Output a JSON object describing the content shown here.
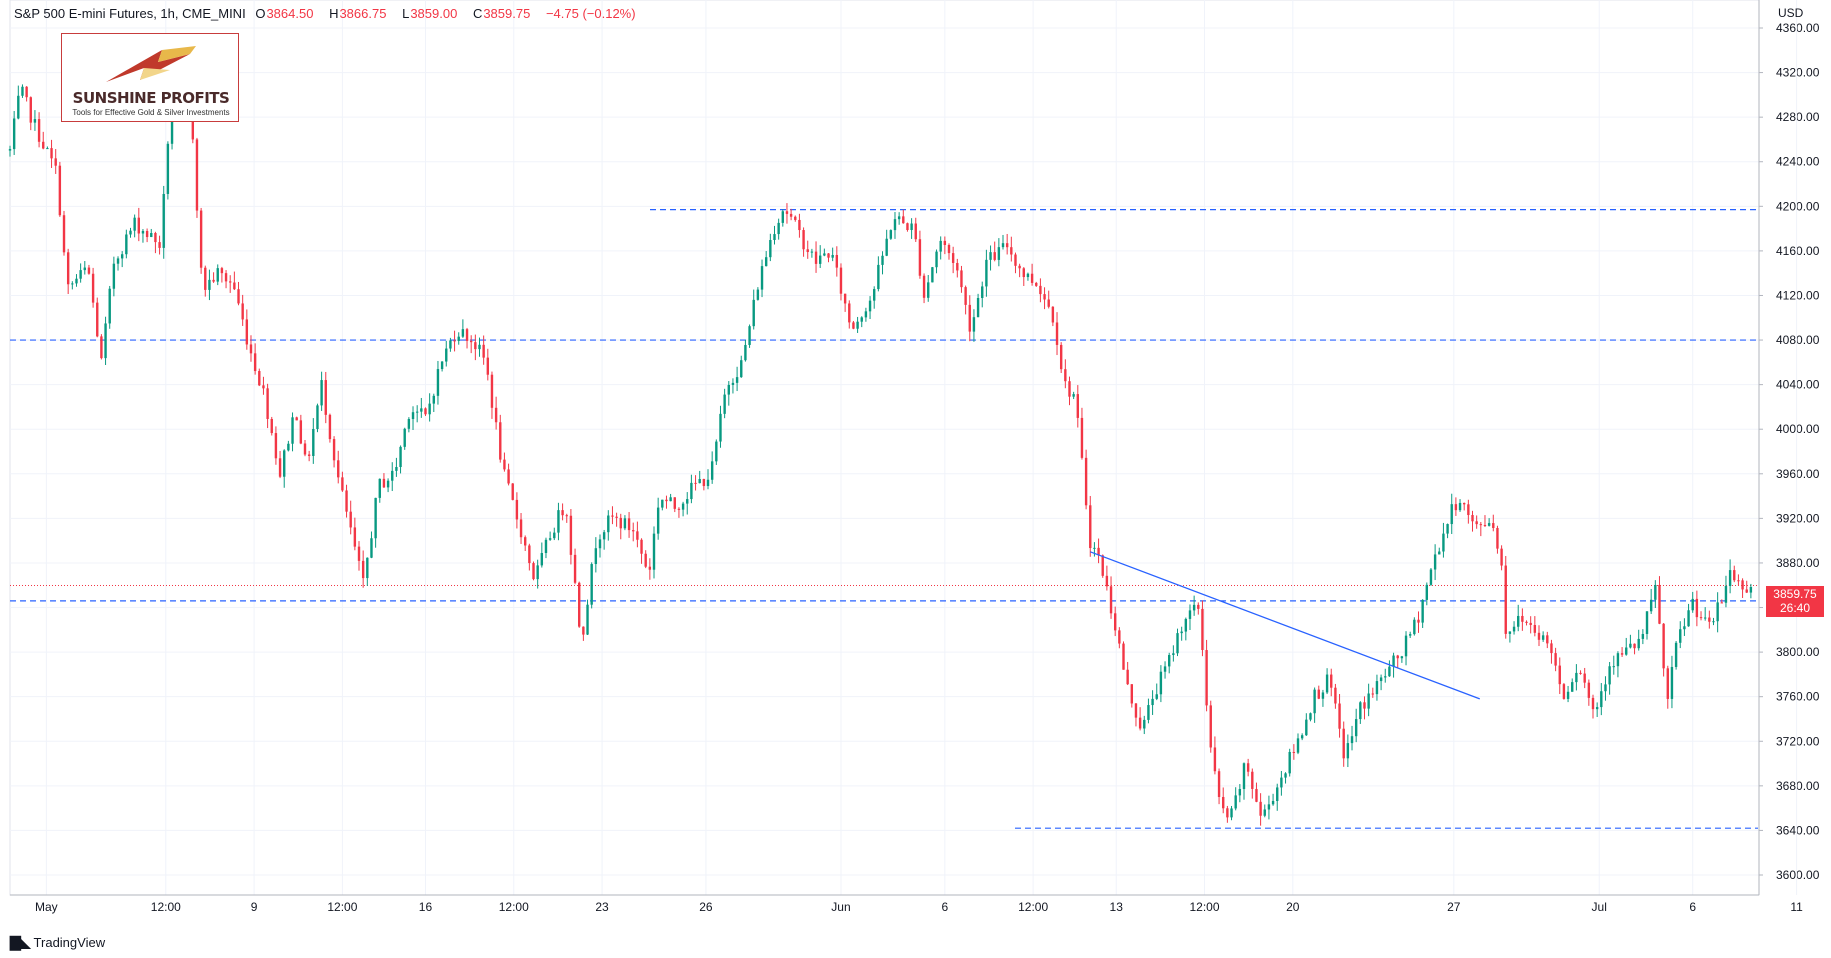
{
  "header": {
    "symbol": "S&P 500 E-mini Futures, 1h, CME_MINI",
    "open_label": "O",
    "open": "3864.50",
    "high_label": "H",
    "high": "3866.75",
    "low_label": "L",
    "low": "3859.00",
    "close_label": "C",
    "close": "3859.75",
    "change": "−4.75 (−0.12%)"
  },
  "currency": "USD",
  "logo": {
    "name": "SUNSHINE PROFITS",
    "tagline": "Tools for Effective Gold & Silver Investments"
  },
  "price_badge": {
    "price": "3859.75",
    "countdown": "26:40"
  },
  "footer": {
    "brand": "TradingView",
    "icon": "tradingview-logo-icon"
  },
  "colors": {
    "up": "#089981",
    "down": "#f23645",
    "level_line": "#2962ff",
    "trendline": "#2962ff",
    "grid": "#f0f3fa"
  },
  "chart_data": {
    "type": "candlestick",
    "timeframe": "1h",
    "ylim": [
      3580,
      4385
    ],
    "y_ticks": [
      3600,
      3640,
      3680,
      3720,
      3760,
      3800,
      3840,
      3880,
      3920,
      3960,
      4000,
      4040,
      4080,
      4120,
      4160,
      4200,
      4240,
      4280,
      4320,
      4360
    ],
    "y_tick_labels": [
      "3600.00",
      "3640.00",
      "3680.00",
      "3720.00",
      "3760.00",
      "3800.00",
      "3840.00",
      "3880.00",
      "3920.00",
      "3960.00",
      "4000.00",
      "4040.00",
      "4080.00",
      "4120.00",
      "4160.00",
      "4200.00",
      "4240.00",
      "4280.00",
      "4320.00",
      "4360.00"
    ],
    "x_tick_labels": [
      "May",
      "12:00",
      "9",
      "12:00",
      "16",
      "12:00",
      "23",
      "26",
      "Jun",
      "6",
      "12:00",
      "13",
      "12:00",
      "20",
      "27",
      "Jul",
      "6",
      "11"
    ],
    "x_tick_index": [
      35,
      150,
      235,
      320,
      400,
      485,
      570,
      670,
      800,
      900,
      985,
      1065,
      1150,
      1235,
      1390,
      1530,
      1620,
      1720
    ],
    "bar_count": 1680,
    "price_path_anchors": [
      [
        0,
        4250
      ],
      [
        10,
        4305
      ],
      [
        25,
        4270
      ],
      [
        45,
        4230
      ],
      [
        55,
        4125
      ],
      [
        75,
        4145
      ],
      [
        88,
        4060
      ],
      [
        100,
        4150
      ],
      [
        120,
        4185
      ],
      [
        145,
        4165
      ],
      [
        155,
        4300
      ],
      [
        165,
        4310
      ],
      [
        175,
        4280
      ],
      [
        185,
        4125
      ],
      [
        200,
        4140
      ],
      [
        215,
        4130
      ],
      [
        230,
        4075
      ],
      [
        245,
        4030
      ],
      [
        260,
        3960
      ],
      [
        275,
        4020
      ],
      [
        285,
        3965
      ],
      [
        300,
        4040
      ],
      [
        315,
        3960
      ],
      [
        325,
        3920
      ],
      [
        340,
        3860
      ],
      [
        355,
        3950
      ],
      [
        370,
        3960
      ],
      [
        385,
        4020
      ],
      [
        400,
        4010
      ],
      [
        415,
        4060
      ],
      [
        430,
        4090
      ],
      [
        445,
        4080
      ],
      [
        458,
        4060
      ],
      [
        475,
        3960
      ],
      [
        490,
        3915
      ],
      [
        505,
        3865
      ],
      [
        520,
        3905
      ],
      [
        535,
        3935
      ],
      [
        550,
        3810
      ],
      [
        565,
        3905
      ],
      [
        580,
        3920
      ],
      [
        600,
        3910
      ],
      [
        615,
        3870
      ],
      [
        625,
        3940
      ],
      [
        640,
        3930
      ],
      [
        660,
        3950
      ],
      [
        675,
        3960
      ],
      [
        690,
        4040
      ],
      [
        705,
        4060
      ],
      [
        720,
        4130
      ],
      [
        735,
        4180
      ],
      [
        745,
        4200
      ],
      [
        760,
        4175
      ],
      [
        775,
        4150
      ],
      [
        790,
        4160
      ],
      [
        810,
        4090
      ],
      [
        830,
        4120
      ],
      [
        850,
        4190
      ],
      [
        870,
        4180
      ],
      [
        880,
        4120
      ],
      [
        895,
        4170
      ],
      [
        910,
        4150
      ],
      [
        925,
        4090
      ],
      [
        940,
        4150
      ],
      [
        960,
        4165
      ],
      [
        975,
        4140
      ],
      [
        990,
        4130
      ],
      [
        1005,
        4100
      ],
      [
        1015,
        4040
      ],
      [
        1025,
        4030
      ],
      [
        1040,
        3900
      ],
      [
        1050,
        3880
      ],
      [
        1065,
        3820
      ],
      [
        1075,
        3770
      ],
      [
        1090,
        3730
      ],
      [
        1100,
        3760
      ],
      [
        1115,
        3790
      ],
      [
        1130,
        3830
      ],
      [
        1145,
        3840
      ],
      [
        1155,
        3720
      ],
      [
        1165,
        3660
      ],
      [
        1175,
        3650
      ],
      [
        1190,
        3700
      ],
      [
        1205,
        3650
      ],
      [
        1220,
        3680
      ],
      [
        1240,
        3720
      ],
      [
        1255,
        3760
      ],
      [
        1270,
        3775
      ],
      [
        1285,
        3705
      ],
      [
        1300,
        3750
      ],
      [
        1320,
        3775
      ],
      [
        1340,
        3800
      ],
      [
        1355,
        3830
      ],
      [
        1370,
        3880
      ],
      [
        1385,
        3920
      ],
      [
        1395,
        3940
      ],
      [
        1410,
        3910
      ],
      [
        1425,
        3920
      ],
      [
        1435,
        3890
      ],
      [
        1440,
        3820
      ],
      [
        1455,
        3830
      ],
      [
        1470,
        3820
      ],
      [
        1485,
        3800
      ],
      [
        1495,
        3760
      ],
      [
        1510,
        3790
      ],
      [
        1525,
        3745
      ],
      [
        1540,
        3790
      ],
      [
        1555,
        3800
      ],
      [
        1570,
        3810
      ],
      [
        1585,
        3860
      ],
      [
        1595,
        3750
      ],
      [
        1605,
        3810
      ],
      [
        1620,
        3845
      ],
      [
        1635,
        3820
      ],
      [
        1650,
        3850
      ],
      [
        1655,
        3875
      ],
      [
        1665,
        3860
      ],
      [
        1680,
        3860
      ]
    ],
    "horizontal_levels": [
      4197,
      4080,
      3846,
      3642
    ],
    "last_price": 3859.75,
    "trendline": {
      "from": [
        1040,
        3890
      ],
      "to": [
        1415,
        3758
      ]
    }
  }
}
